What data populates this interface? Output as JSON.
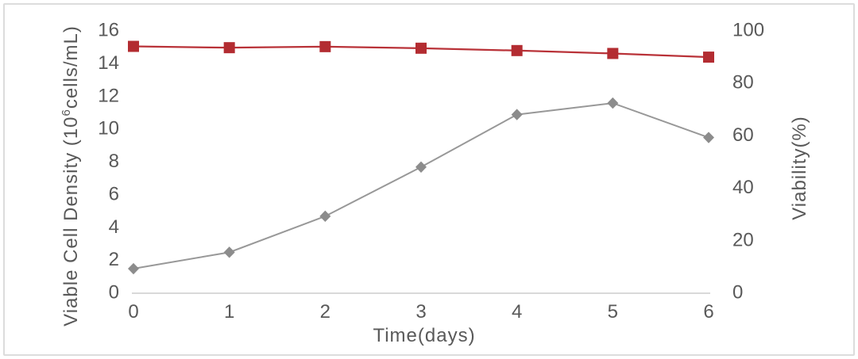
{
  "frame": {
    "border_color": "#dcdcdc",
    "background": "#ffffff"
  },
  "chart_data": {
    "type": "line",
    "title": "",
    "x_label": "Time(days)",
    "x": [
      0,
      1,
      2,
      3,
      4,
      5,
      6
    ],
    "x_tick_labels": [
      "0",
      "1",
      "2",
      "3",
      "4",
      "5",
      "6"
    ],
    "left_axis": {
      "label": "Viable Cell Density (10⁶cells/mL)",
      "label_prefix": "Viable Cell Density (10",
      "label_superscript": "6",
      "label_suffix": "cells/mL)",
      "ticks": [
        0,
        2,
        4,
        6,
        8,
        10,
        12,
        14,
        16
      ],
      "range": [
        0,
        16
      ]
    },
    "right_axis": {
      "label": "Viability(%)",
      "ticks": [
        0,
        20,
        40,
        60,
        80,
        100
      ],
      "range": [
        0,
        100
      ]
    },
    "series": [
      {
        "name": "Viable Cell Density",
        "axis": "left",
        "marker": "diamond",
        "color": "#8c8c8c",
        "line_color": "#989898",
        "values": [
          1.4,
          2.4,
          4.6,
          7.6,
          10.8,
          11.5,
          9.4
        ]
      },
      {
        "name": "Viability",
        "axis": "right",
        "marker": "square",
        "color": "#b32c31",
        "line_color": "#b93238",
        "values": [
          93.5,
          93.0,
          93.4,
          92.8,
          91.9,
          90.8,
          89.4
        ]
      }
    ],
    "legend": "none",
    "grid": false,
    "text_color": "#595959",
    "axis_line_color": "#d9d9d9"
  }
}
